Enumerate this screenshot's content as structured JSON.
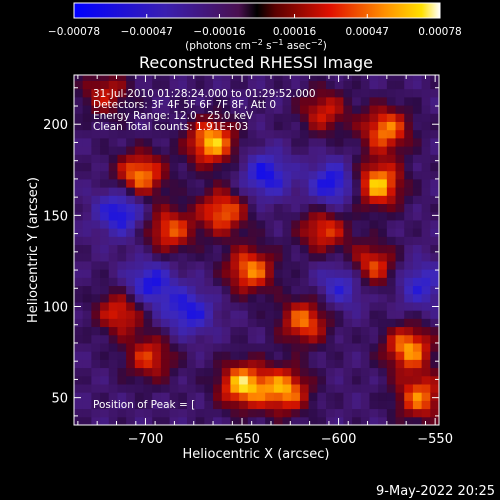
{
  "chart_data": {
    "type": "heatmap",
    "title": "Reconstructed RHESSI Image",
    "xlabel": "Heliocentric X (arcsec)",
    "ylabel": "Heliocentric Y (arcsec)",
    "xlim": [
      -737,
      -548
    ],
    "ylim": [
      35,
      227
    ],
    "xticks": [
      -700,
      -650,
      -600,
      -550
    ],
    "xtick_labels": [
      "−700",
      "−650",
      "−600",
      "−550"
    ],
    "yticks": [
      50,
      100,
      150,
      200
    ],
    "ytick_labels": [
      "50",
      "100",
      "150",
      "200"
    ],
    "colorbar": {
      "range": [
        -0.00078,
        0.00078
      ],
      "ticks": [
        -0.00078,
        -0.00047,
        -0.00016,
        0.00016,
        0.00047,
        0.00078
      ],
      "tick_labels": [
        "−0.00078",
        "−0.00047",
        "−0.00016",
        "0.00016",
        "0.00047",
        "0.00078"
      ],
      "unit_prefix": "(photons cm",
      "unit_exp1": "−2",
      "unit_mid": " s",
      "unit_exp2": "−1",
      "unit_mid2": " asec",
      "unit_exp3": "−2",
      "unit_suffix": ")",
      "colormap": "blue-purple-red-yellow-white"
    },
    "info": [
      "31-Jul-2010 01:28:24.000 to 01:29:52.000",
      "Detectors: 3F 4F 5F 6F 7F 8F, Att 0",
      "Energy Range: 12.0 - 25.0 keV",
      "Clean     Total counts: 1.91E+03"
    ],
    "peak_label": "Position of Peak = [",
    "grid": false,
    "bright_sources": [
      {
        "x": -705,
        "y": 170,
        "level": 0.9
      },
      {
        "x": -690,
        "y": 140,
        "level": 0.75
      },
      {
        "x": -668,
        "y": 188,
        "level": 1.0
      },
      {
        "x": -662,
        "y": 150,
        "level": 0.8
      },
      {
        "x": -648,
        "y": 118,
        "level": 0.85
      },
      {
        "x": -652,
        "y": 55,
        "level": 1.0
      },
      {
        "x": -630,
        "y": 52,
        "level": 0.9
      },
      {
        "x": -620,
        "y": 90,
        "level": 0.8
      },
      {
        "x": -610,
        "y": 140,
        "level": 0.7
      },
      {
        "x": -582,
        "y": 165,
        "level": 1.0
      },
      {
        "x": -578,
        "y": 195,
        "level": 0.85
      },
      {
        "x": -585,
        "y": 120,
        "level": 0.75
      },
      {
        "x": -566,
        "y": 75,
        "level": 0.9
      },
      {
        "x": -560,
        "y": 48,
        "level": 0.8
      },
      {
        "x": -715,
        "y": 95,
        "level": 0.7
      },
      {
        "x": -700,
        "y": 70,
        "level": 0.65
      },
      {
        "x": -610,
        "y": 205,
        "level": 0.6
      },
      {
        "x": -723,
        "y": 215,
        "level": 0.55
      }
    ],
    "dim_regions": [
      {
        "x": -715,
        "y": 150,
        "level": -0.75
      },
      {
        "x": -640,
        "y": 170,
        "level": -0.7
      },
      {
        "x": -605,
        "y": 165,
        "level": -0.75
      },
      {
        "x": -700,
        "y": 110,
        "level": -0.7
      },
      {
        "x": -680,
        "y": 95,
        "level": -0.65
      },
      {
        "x": -600,
        "y": 110,
        "level": -0.6
      },
      {
        "x": -560,
        "y": 110,
        "level": -0.55
      }
    ]
  },
  "footer": {
    "timestamp": "9-May-2022 20:25"
  }
}
